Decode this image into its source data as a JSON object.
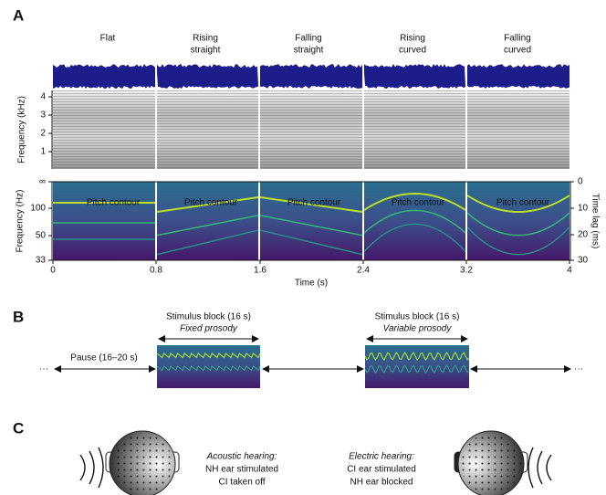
{
  "panel_a": {
    "label": "A",
    "conditions": [
      [
        "Flat"
      ],
      [
        "Rising",
        "straight"
      ],
      [
        "Falling",
        "straight"
      ],
      [
        "Rising",
        "curved"
      ],
      [
        "Falling",
        "curved"
      ]
    ],
    "spectrogram_axis": {
      "label": "Frequency (kHz)",
      "ticks": [
        "4",
        "3",
        "2",
        "1"
      ]
    },
    "pitch_axis": {
      "label": "Frequency (Hz)",
      "ticks": [
        "∞",
        "100",
        "50",
        "33"
      ]
    },
    "lag_axis": {
      "label": "Time lag (ms)",
      "ticks": [
        "0",
        "10",
        "20",
        "30"
      ]
    },
    "time_axis": {
      "label": "Time (s)",
      "ticks": [
        "0",
        "0.8",
        "1.6",
        "2.4",
        "3.2",
        "4"
      ]
    },
    "contour_label": "Pitch contour"
  },
  "panel_b": {
    "label": "B",
    "blocks": [
      {
        "title": "Stimulus block (16 s)",
        "subtitle": "Fixed prosody"
      },
      {
        "title": "Stimulus block (16 s)",
        "subtitle": "Variable prosody"
      }
    ],
    "pause": "Pause (16–20 s)",
    "ellipsis": "···"
  },
  "panel_c": {
    "label": "C",
    "conditions": [
      {
        "title": "Acoustic hearing:",
        "lines": [
          "NH ear stimulated",
          "CI taken off"
        ]
      },
      {
        "title": "Electric hearing:",
        "lines": [
          "CI ear stimulated",
          "NH ear blocked"
        ]
      }
    ]
  }
}
